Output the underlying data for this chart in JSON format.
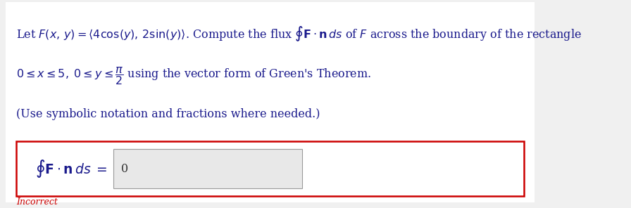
{
  "bg_color": "#f0f0f0",
  "panel_bg": "#ffffff",
  "line1": "Let F(x, y) = ⟨4 cos(y), 2 sin(y)⟩. Compute the flux ",
  "line1_bold": "F",
  "line1_cont": " · n ds of F across the boundary of the rectangle",
  "line2": "0 ≤ x ≤ 5, 0 ≤ y ≤ ",
  "line2_frac_num": "π",
  "line2_frac_den": "2",
  "line2_cont": " using the vector form of Green’s Theorem.",
  "line3": "(Use symbolic notation and fractions where needed.)",
  "answer_label_integral": "∮",
  "answer_label_F": "F",
  "answer_label_rest": " · n ds =",
  "answer_value": "0",
  "incorrect_text": "Incorrect",
  "incorrect_color": "#cc0000",
  "text_color": "#1a1a8c",
  "input_box_bg": "#e8e8e8",
  "input_box_border": "#999999",
  "answer_box_border": "#cc0000",
  "answer_box_bg": "#ffffff"
}
